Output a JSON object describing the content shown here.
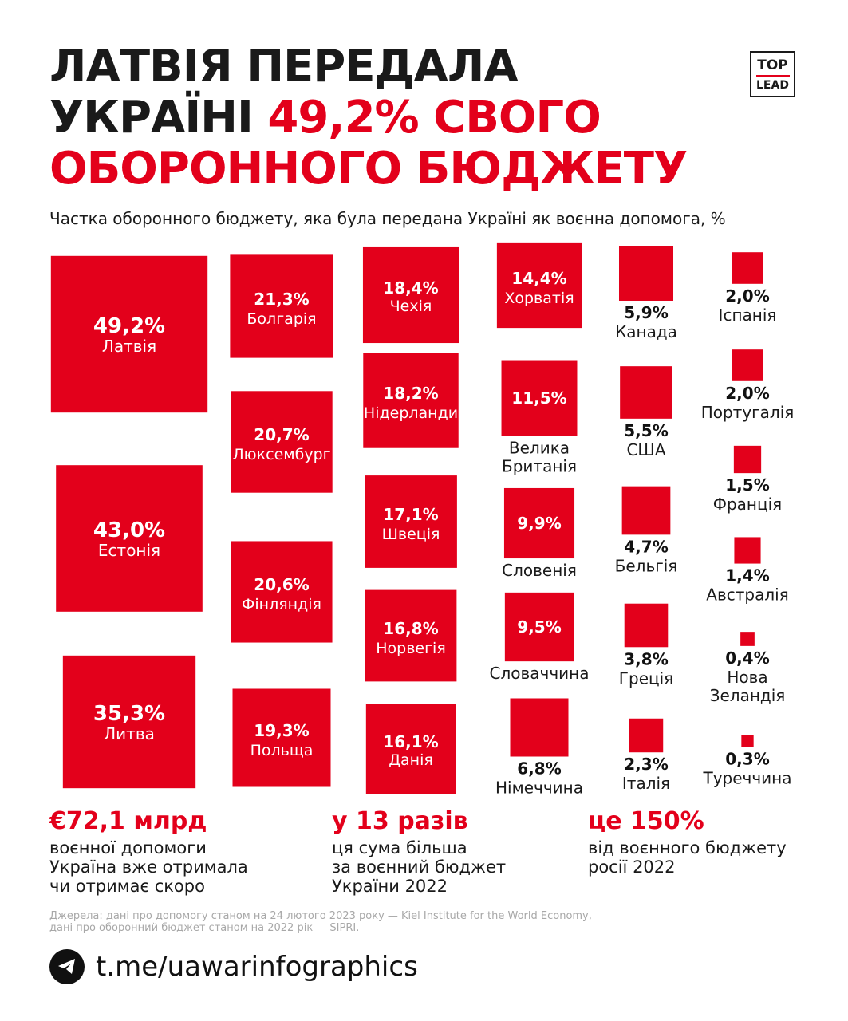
{
  "title": {
    "line1": "ЛАТВІЯ ПЕРЕДАЛА",
    "line2_prefix": "УКРАЇНІ ",
    "line2_highlight": "49,2% СВОГО",
    "line3": "ОБОРОННОГО БЮДЖЕТУ"
  },
  "logo": {
    "top": "TOP",
    "bottom": "LEAD"
  },
  "subtitle": "Частка оборонного бюджету, яка була передана Україні як воєнна допомога, %",
  "colors": {
    "accent": "#e3001b",
    "text": "#1a1a1a",
    "source": "#a8a8a8"
  },
  "chart_data": {
    "type": "proportional-squares",
    "title": "Частка оборонного бюджету, яка була передана Україні як воєнна допомога, %",
    "unit": "%",
    "items": [
      {
        "country": "Латвія",
        "value": 49.2,
        "label": "49,2%"
      },
      {
        "country": "Естонія",
        "value": 43.0,
        "label": "43,0%"
      },
      {
        "country": "Литва",
        "value": 35.3,
        "label": "35,3%"
      },
      {
        "country": "Болгарія",
        "value": 21.3,
        "label": "21,3%"
      },
      {
        "country": "Люксембург",
        "value": 20.7,
        "label": "20,7%"
      },
      {
        "country": "Фінляндія",
        "value": 20.6,
        "label": "20,6%"
      },
      {
        "country": "Польща",
        "value": 19.3,
        "label": "19,3%"
      },
      {
        "country": "Чехія",
        "value": 18.4,
        "label": "18,4%"
      },
      {
        "country": "Нідерланди",
        "value": 18.2,
        "label": "18,2%"
      },
      {
        "country": "Швеція",
        "value": 17.1,
        "label": "17,1%"
      },
      {
        "country": "Норвегія",
        "value": 16.8,
        "label": "16,8%"
      },
      {
        "country": "Данія",
        "value": 16.1,
        "label": "16,1%"
      },
      {
        "country": "Хорватія",
        "value": 14.4,
        "label": "14,4%"
      },
      {
        "country": "Велика Британія",
        "value": 11.5,
        "label": "11,5%"
      },
      {
        "country": "Словенія",
        "value": 9.9,
        "label": "9,9%"
      },
      {
        "country": "Словаччина",
        "value": 9.5,
        "label": "9,5%"
      },
      {
        "country": "Німеччина",
        "value": 6.8,
        "label": "6,8%"
      },
      {
        "country": "Канада",
        "value": 5.9,
        "label": "5,9%"
      },
      {
        "country": "США",
        "value": 5.5,
        "label": "5,5%"
      },
      {
        "country": "Бельгія",
        "value": 4.7,
        "label": "4,7%"
      },
      {
        "country": "Греція",
        "value": 3.8,
        "label": "3,8%"
      },
      {
        "country": "Італія",
        "value": 2.3,
        "label": "2,3%"
      },
      {
        "country": "Іспанія",
        "value": 2.0,
        "label": "2,0%"
      },
      {
        "country": "Португалія",
        "value": 2.0,
        "label": "2,0%"
      },
      {
        "country": "Франція",
        "value": 1.5,
        "label": "1,5%"
      },
      {
        "country": "Австралія",
        "value": 1.4,
        "label": "1,4%"
      },
      {
        "country": "Нова Зеландія",
        "value": 0.4,
        "label": "0,4%"
      },
      {
        "country": "Туреччина",
        "value": 0.3,
        "label": "0,3%"
      }
    ]
  },
  "stats": [
    {
      "big": "€72,1 млрд",
      "desc": "воєнної допомоги\nУкраїна вже отримала\nчи отримає скоро"
    },
    {
      "big": "у 13 разів",
      "desc": "ця сума більша\nза воєнний бюджет\nУкраїни 2022"
    },
    {
      "big": "це 150%",
      "desc": "від воєнного бюджету\nросії 2022"
    }
  ],
  "source": "Джерела: дані про допомогу станом на 24 лютого 2023 року — Kiel Institute for the World Economy,\nдані про оборонний бюджет станом на 2022 рік — SIPRI.",
  "telegram": {
    "icon": "telegram-icon",
    "url": "t.me/uawarinfographics"
  }
}
